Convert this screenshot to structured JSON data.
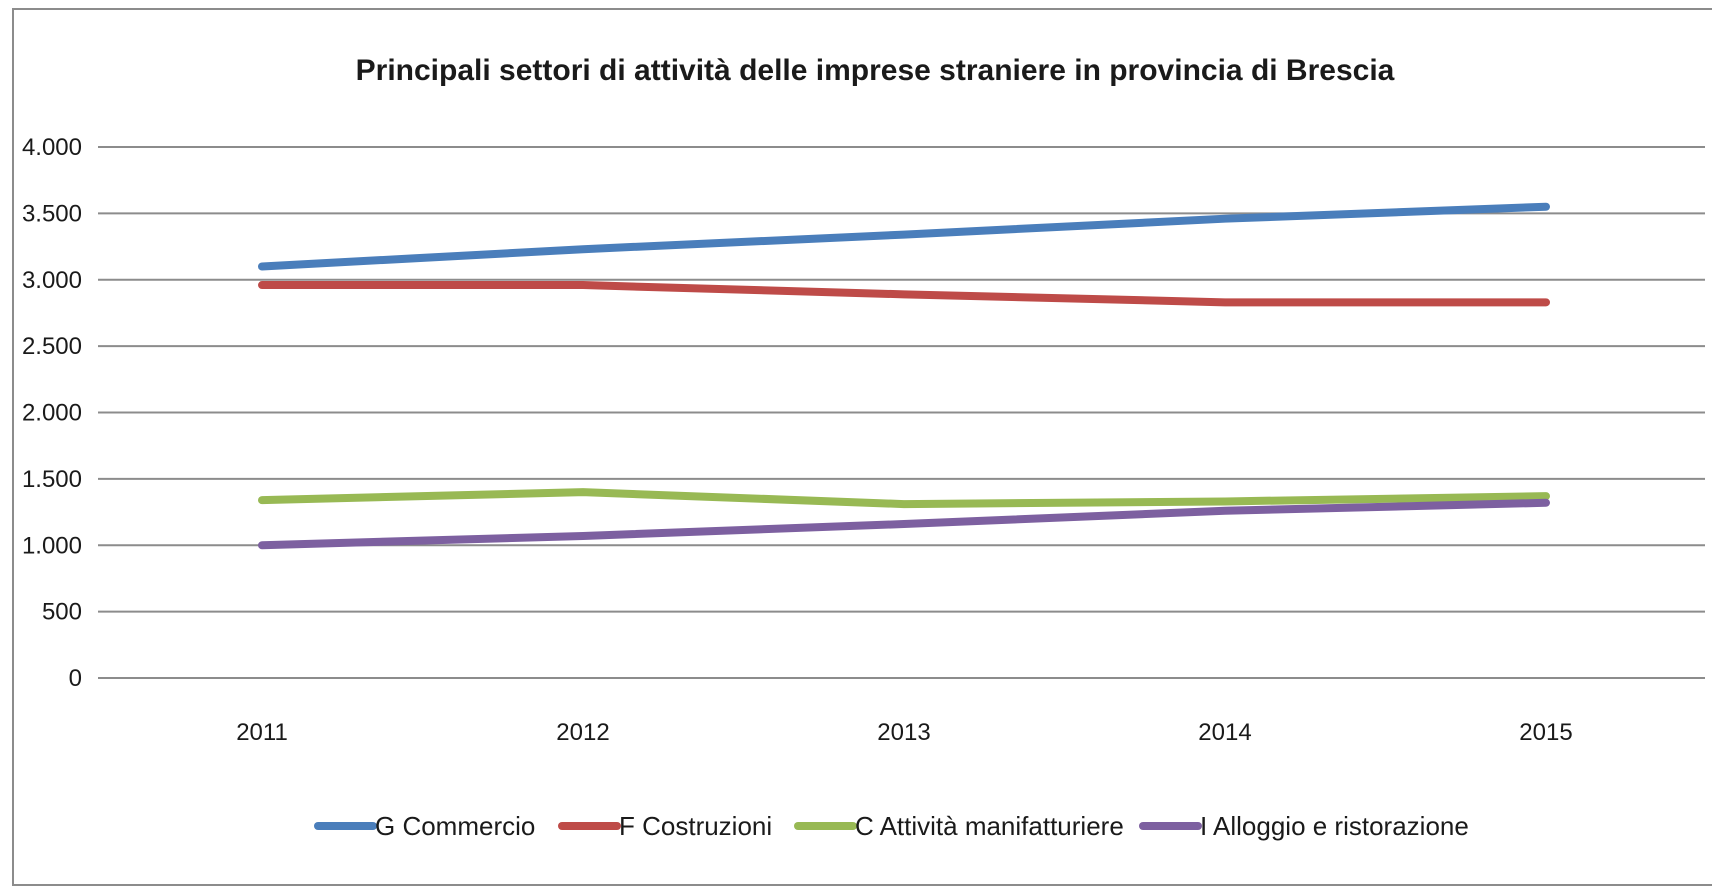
{
  "chart_data": {
    "type": "line",
    "title": "Principali settori di attività delle imprese straniere in provincia di Brescia",
    "xlabel": "",
    "ylabel": "",
    "categories": [
      "2011",
      "2012",
      "2013",
      "2014",
      "2015"
    ],
    "ylim": [
      0,
      4000
    ],
    "yticks": [
      0,
      500,
      1000,
      1500,
      2000,
      2500,
      3000,
      3500,
      4000
    ],
    "ytick_labels": [
      "0",
      "500",
      "1.000",
      "1.500",
      "2.000",
      "2.500",
      "3.000",
      "3.500",
      "4.000"
    ],
    "grid": true,
    "legend_position": "bottom",
    "series": [
      {
        "name": "G Commercio",
        "color": "#4a7ebb",
        "values": [
          3100,
          3230,
          3340,
          3460,
          3550
        ]
      },
      {
        "name": "F Costruzioni",
        "color": "#be4b48",
        "values": [
          2960,
          2960,
          2890,
          2830,
          2830
        ]
      },
      {
        "name": "C Attività manifatturiere",
        "color": "#98b954",
        "values": [
          1340,
          1400,
          1310,
          1330,
          1370
        ]
      },
      {
        "name": "I Alloggio e ristorazione",
        "color": "#7d60a0",
        "values": [
          1000,
          1070,
          1160,
          1260,
          1320
        ]
      }
    ]
  }
}
